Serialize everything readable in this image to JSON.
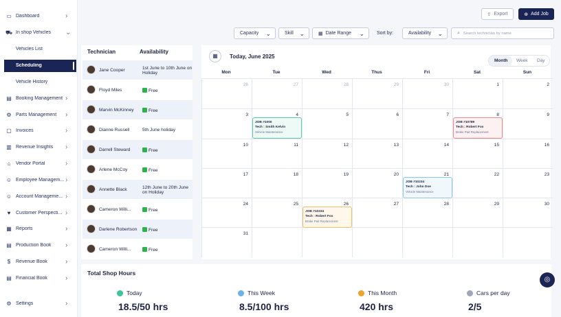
{
  "sidebar": {
    "items": [
      {
        "label": "Dashboard",
        "icon": "dashboard-icon",
        "glyph": "▭"
      },
      {
        "label": "In shop Vehicles",
        "icon": "car-icon",
        "glyph": "⛟"
      },
      {
        "label": "Vehicles List"
      },
      {
        "label": "Scheduling"
      },
      {
        "label": "Vehicle History"
      },
      {
        "label": "Booking Management",
        "icon": "booking-icon",
        "glyph": "▤"
      },
      {
        "label": "Parts Management",
        "icon": "parts-icon",
        "glyph": "⚙"
      },
      {
        "label": "Invoices",
        "icon": "invoice-icon",
        "glyph": "▢"
      },
      {
        "label": "Revenue Insights",
        "icon": "insights-icon",
        "glyph": "▥"
      },
      {
        "label": "Vendor Portal",
        "icon": "vendor-icon",
        "glyph": "⌂"
      },
      {
        "label": "Employee Managem...",
        "icon": "employee-icon",
        "glyph": "☺"
      },
      {
        "label": "Account Manageme...",
        "icon": "account-icon",
        "glyph": "☺"
      },
      {
        "label": "Customer Perspecti...",
        "icon": "customer-icon",
        "glyph": "♥"
      },
      {
        "label": "Reports",
        "icon": "reports-icon",
        "glyph": "▦"
      },
      {
        "label": "Production Book",
        "icon": "production-icon",
        "glyph": "▤"
      },
      {
        "label": "Revenue Book",
        "icon": "revenue-icon",
        "glyph": "$"
      },
      {
        "label": "Financial  Book",
        "icon": "financial-icon",
        "glyph": "▤"
      },
      {
        "label": "Settings",
        "icon": "settings-icon",
        "glyph": "⚙"
      }
    ]
  },
  "toolbar": {
    "export_label": "Export",
    "add_job_label": "Add Job"
  },
  "filters": {
    "capacity": "Capacity",
    "skill": "Skill",
    "date_range": "Date Range",
    "sort_by": "Sort by:",
    "availability": "Availability",
    "search_placeholder": "Search technician by name"
  },
  "technicians": {
    "header_name": "Technician",
    "header_availability": "Availability",
    "rows": [
      {
        "name": "Jane Cooper",
        "availability": "1st June to 10th June on Holiday",
        "free": false
      },
      {
        "name": "Floyd Miles",
        "availability": "Free",
        "free": true
      },
      {
        "name": "Marvin McKinney",
        "availability": "Free",
        "free": true
      },
      {
        "name": "Dianne Russell",
        "availability": "5th June holiday",
        "free": false
      },
      {
        "name": "Darrell Steward",
        "availability": "Free",
        "free": true
      },
      {
        "name": "Arlene McCoy",
        "availability": "Free",
        "free": true
      },
      {
        "name": "Annette Black",
        "availability": "12th June to 20th June on Holiday",
        "free": false
      },
      {
        "name": "Cameron Willi...",
        "availability": "Free",
        "free": true
      },
      {
        "name": "Darlene Robertson",
        "availability": "Free",
        "free": true
      },
      {
        "name": "Cameron Willi...",
        "availability": "Free",
        "free": true
      }
    ]
  },
  "calendar": {
    "title": "Today, June 2025",
    "views": [
      "Month",
      "Week",
      "Day"
    ],
    "active_view": "Month",
    "days": [
      "Mon",
      "Tue",
      "Wed",
      "Thus",
      "Fri",
      "Sat",
      "Sun"
    ],
    "weeks": [
      [
        "26",
        "27",
        "28",
        "29",
        "30",
        "1",
        "2"
      ],
      [
        "3",
        "4",
        "5",
        "6",
        "7",
        "8",
        "9"
      ],
      [
        "10",
        "11",
        "12",
        "13",
        "14",
        "15",
        "16"
      ],
      [
        "17",
        "18",
        "19",
        "20",
        "21",
        "22",
        "23"
      ],
      [
        "24",
        "25",
        "26",
        "27",
        "28",
        "29",
        "30"
      ],
      [
        "31",
        "",
        "",
        "",
        "",
        "",
        ""
      ]
    ],
    "muted_first_week": 5,
    "jobs": [
      {
        "week": 1,
        "day": 1,
        "title": "JOB #1000",
        "tech": "Tech : Smith Kelvin",
        "desc": "Vehicle Maintenance",
        "border": "#5cc9a7",
        "bg": "#eefaf6"
      },
      {
        "week": 1,
        "day": 5,
        "title": "JOB #10789",
        "tech": "Tech : Robert Fox",
        "desc": "Brake Pad Replacement",
        "border": "#ec8b8b",
        "bg": "#fdf1f1"
      },
      {
        "week": 3,
        "day": 4,
        "title": "JOB #10234",
        "tech": "Tech : John Doe",
        "desc": "Vehicle Maintenance",
        "border": "#8cc8e6",
        "bg": "#f1f8fc"
      },
      {
        "week": 4,
        "day": 2,
        "title": "JOB #10234",
        "tech": "Tech : Robert Fox",
        "desc": "Brake Pad Replacement",
        "border": "#f0c06a",
        "bg": "#fff8ea"
      }
    ]
  },
  "shop_hours": {
    "title": "Total Shop Hours",
    "stats": [
      {
        "label": "Today",
        "value": "18.5/50 hrs",
        "color": "#3fc49a"
      },
      {
        "label": "This Week",
        "value": "8.5/100 hrs",
        "color": "#6cb2ea"
      },
      {
        "label": "This Month",
        "value": "420 hrs",
        "color": "#f0a22e"
      },
      {
        "label": "Cars per day",
        "value": "2/5",
        "color": "#9ea6b8"
      }
    ]
  }
}
